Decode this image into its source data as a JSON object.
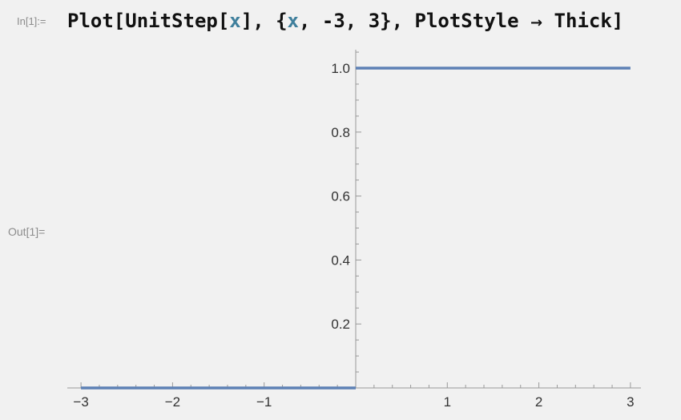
{
  "cell": {
    "in_label": "In[1]:=",
    "out_label": "Out[1]=",
    "input": {
      "t1": "Plot[UnitStep[",
      "v1": "x",
      "t2": "], {",
      "v2": "x",
      "t3": ", -3, 3}, PlotStyle",
      "arrow": "→",
      "t4": "Thick]"
    }
  },
  "colors": {
    "background": "#f1f1f1",
    "series": "#5e81b5",
    "axis": "#999999",
    "variable": "#3f7f9c"
  },
  "chart_data": {
    "type": "line",
    "x_ticks": [
      {
        "value": -3,
        "label": "−3"
      },
      {
        "value": -2,
        "label": "−2"
      },
      {
        "value": -1,
        "label": "−1"
      },
      {
        "value": 1,
        "label": "1"
      },
      {
        "value": 2,
        "label": "2"
      },
      {
        "value": 3,
        "label": "3"
      }
    ],
    "y_ticks": [
      {
        "value": 0.2,
        "label": "0.2"
      },
      {
        "value": 0.4,
        "label": "0.4"
      },
      {
        "value": 0.6,
        "label": "0.6"
      },
      {
        "value": 0.8,
        "label": "0.8"
      },
      {
        "value": 1.0,
        "label": "1.0"
      }
    ],
    "series": [
      {
        "x": [
          -3,
          0,
          0,
          3
        ],
        "y": [
          0,
          0,
          1,
          1
        ]
      }
    ],
    "xlim": [
      -3,
      3
    ],
    "ylim": [
      0,
      1
    ],
    "grid": false,
    "title": "",
    "xlabel": "",
    "ylabel": ""
  }
}
